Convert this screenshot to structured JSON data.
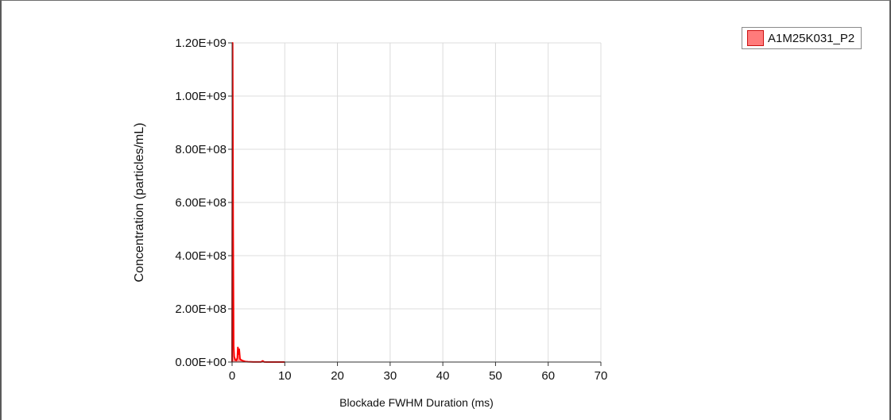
{
  "chart_data": {
    "type": "area",
    "title": "",
    "xlabel": "Blockade FWHM Duration (ms)",
    "ylabel": "Concentration (particles/mL)",
    "xlim": [
      0,
      70
    ],
    "ylim": [
      0,
      1200000000
    ],
    "x_ticks": [
      "0",
      "10",
      "20",
      "30",
      "40",
      "50",
      "60",
      "70"
    ],
    "y_ticks": [
      "0.00E+00",
      "2.00E+08",
      "4.00E+08",
      "6.00E+08",
      "8.00E+08",
      "1.00E+09",
      "1.20E+09"
    ],
    "grid": true,
    "legend_position": "top-right",
    "series": [
      {
        "name": "A1M25K031_P2",
        "color": "#ff0000",
        "fill": "#ff7b7b",
        "x": [
          0.0,
          0.1,
          0.2,
          0.3,
          0.4,
          0.6,
          0.8,
          1.0,
          1.1,
          1.2,
          1.35,
          1.5,
          1.7,
          2.0,
          2.5,
          3.0,
          4.0,
          5.5,
          5.8,
          6.1,
          6.5,
          8.0,
          10.0
        ],
        "y": [
          0,
          1200000000,
          500000000,
          60000000,
          20000000,
          8000000,
          6000000,
          15000000,
          55000000,
          30000000,
          48000000,
          12000000,
          8000000,
          5000000,
          2000000,
          1000000,
          500000,
          300000,
          4000000,
          300000,
          100000,
          0,
          0
        ]
      }
    ]
  },
  "legend": {
    "label": "A1M25K031_P2",
    "color": "#ff7b7b"
  }
}
